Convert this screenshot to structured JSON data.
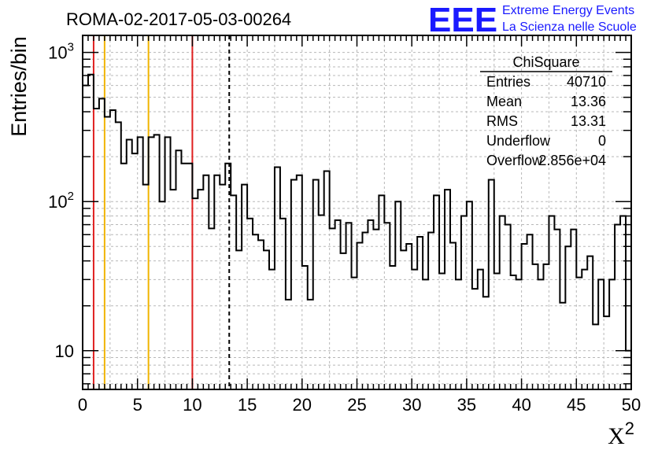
{
  "chart_data": {
    "type": "histogram",
    "title": "ROMA-02-2017-05-03-00264",
    "xlabel": "X",
    "xlabel_sup": "2",
    "ylabel": "Entries/bin",
    "yscale": "log",
    "xlim": [
      0,
      50
    ],
    "ylim": [
      5.5,
      1300
    ],
    "grid": true,
    "bin_width": 0.5,
    "x_ticks": [
      "0",
      "5",
      "10",
      "15",
      "20",
      "25",
      "30",
      "35",
      "40",
      "45",
      "50"
    ],
    "y_ticks": [
      {
        "value": 10,
        "base": "10",
        "exp": ""
      },
      {
        "value": 100,
        "base": "10",
        "exp": "2"
      },
      {
        "value": 1000,
        "base": "10",
        "exp": "3"
      }
    ],
    "values": [
      600,
      710,
      420,
      490,
      370,
      410,
      340,
      180,
      260,
      210,
      270,
      130,
      270,
      280,
      100,
      270,
      120,
      220,
      180,
      180,
      105,
      120,
      150,
      66,
      150,
      130,
      180,
      110,
      47,
      130,
      77,
      60,
      55,
      47,
      35,
      170,
      77,
      22,
      140,
      150,
      37,
      22,
      140,
      81,
      160,
      66,
      75,
      45,
      72,
      31,
      53,
      62,
      75,
      65,
      110,
      72,
      37,
      100,
      47,
      52,
      35,
      58,
      30,
      62,
      110,
      33,
      120,
      53,
      30,
      80,
      100,
      26,
      35,
      23,
      140,
      33,
      80,
      70,
      32,
      30,
      52,
      60,
      38,
      30,
      38,
      80,
      65,
      21,
      50,
      65,
      31,
      35,
      43,
      15,
      30,
      17,
      30,
      70,
      80,
      10
    ],
    "series": [
      {
        "name": "ChiSquare"
      }
    ],
    "vertical_lines": [
      {
        "x": 1,
        "color": "#e02020",
        "style": "solid"
      },
      {
        "x": 2,
        "color": "#f0b400",
        "style": "solid"
      },
      {
        "x": 6,
        "color": "#f0b400",
        "style": "solid"
      },
      {
        "x": 10,
        "color": "#e02020",
        "style": "solid"
      },
      {
        "x": 13.36,
        "color": "#000000",
        "style": "dashed"
      }
    ],
    "stats_box": {
      "title": "ChiSquare",
      "rows": [
        {
          "label": "Entries",
          "value": "40710"
        },
        {
          "label": "Mean",
          "value": "13.36"
        },
        {
          "label": "RMS",
          "value": "13.31"
        },
        {
          "label": "Underflow",
          "value": "0"
        },
        {
          "label": "Overflow",
          "value": "2.856e+04"
        }
      ]
    }
  },
  "logo": {
    "text": "EEE",
    "line1": "Extreme Energy Events",
    "line2": "La Scienza nelle Scuole",
    "color": "#1a1aff"
  }
}
